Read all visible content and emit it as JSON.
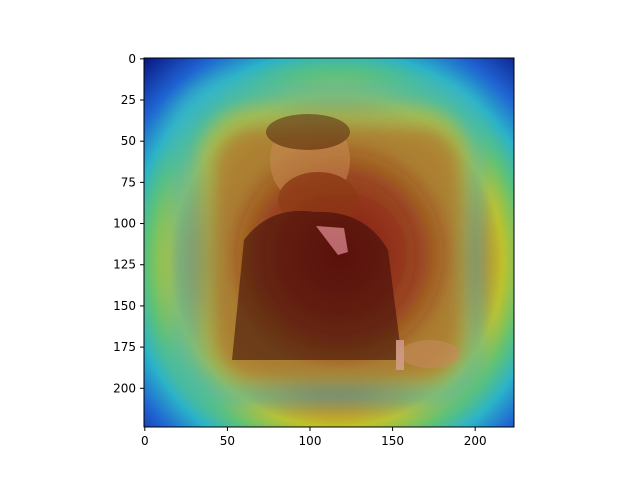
{
  "chart_data": {
    "type": "heatmap",
    "title": "",
    "xlabel": "",
    "ylabel": "",
    "xlim": [
      -0.5,
      223.5
    ],
    "ylim": [
      223.5,
      -0.5
    ],
    "y_inverted": true,
    "colormap": "jet",
    "image_size": [
      224,
      224
    ],
    "underlying_image": "sepia portrait of a bearded man in a dark suit",
    "x_ticks": [
      0,
      50,
      100,
      150,
      200
    ],
    "y_ticks": [
      0,
      25,
      50,
      75,
      100,
      125,
      150,
      175,
      200
    ],
    "x_tick_labels": [
      "0",
      "50",
      "100",
      "150",
      "200"
    ],
    "y_tick_labels": [
      "0",
      "25",
      "50",
      "75",
      "100",
      "125",
      "150",
      "175",
      "200"
    ],
    "heatmap_peak_region": {
      "x": [
        50,
        175
      ],
      "y": [
        45,
        180
      ]
    },
    "heatmap_levels": [
      {
        "level": 0.0,
        "color": "#0a1c8c"
      },
      {
        "level": 0.2,
        "color": "#1f5fd0"
      },
      {
        "level": 0.35,
        "color": "#2eb7c6"
      },
      {
        "level": 0.5,
        "color": "#61c56b"
      },
      {
        "level": 0.62,
        "color": "#c6c42c"
      },
      {
        "level": 0.75,
        "color": "#c87d1a"
      },
      {
        "level": 0.88,
        "color": "#a92e15"
      },
      {
        "level": 1.0,
        "color": "#7f100c"
      }
    ]
  }
}
